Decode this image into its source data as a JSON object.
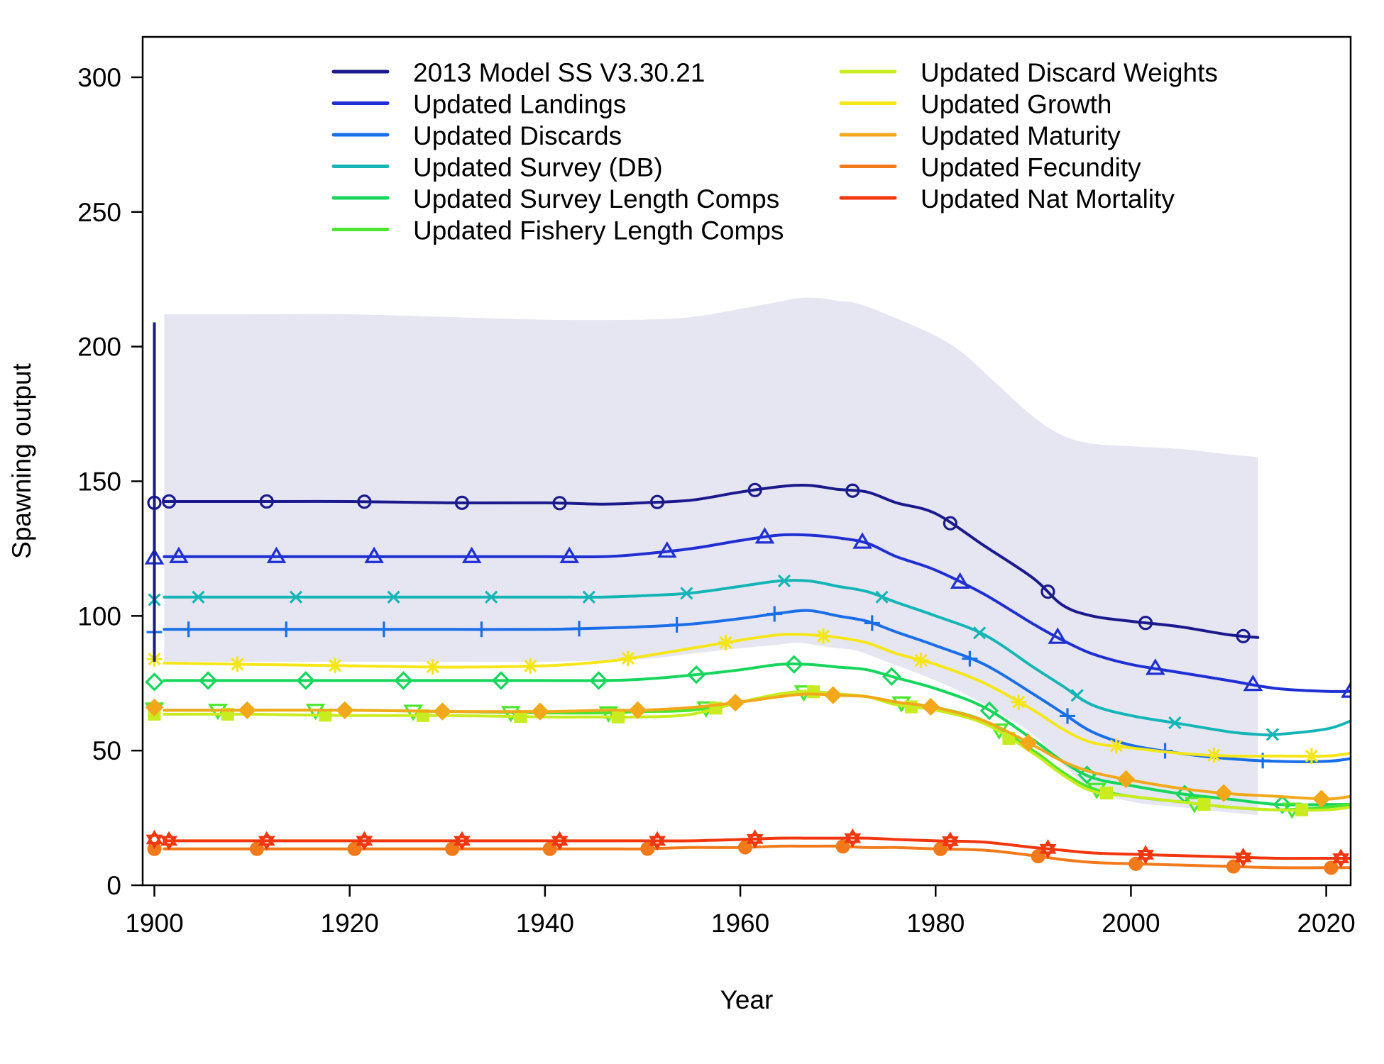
{
  "chart_data": {
    "type": "line",
    "title": "",
    "xlabel": "Year",
    "ylabel": "Spawning output",
    "xlim": [
      1898.8,
      2022.5
    ],
    "ylim": [
      0,
      315
    ],
    "xticks": [
      1900,
      1920,
      1940,
      1960,
      1980,
      2000,
      2020
    ],
    "yticks": [
      0,
      50,
      100,
      150,
      200,
      250,
      300
    ],
    "grid": false,
    "legend": "top-center, two columns",
    "band": {
      "name": "2013 Model SS V3.30.21 uncertainty interval",
      "color": "#e6e6f2",
      "x": [
        1901,
        1910,
        1920,
        1930,
        1940,
        1950,
        1955,
        1960,
        1963,
        1966,
        1968,
        1970,
        1972,
        1975,
        1980,
        1983,
        1986,
        1990,
        1993,
        1996,
        2000,
        2005,
        2010,
        2013
      ],
      "upper": [
        212,
        212,
        212,
        211,
        210,
        210,
        211,
        214,
        216,
        218,
        218,
        217,
        216,
        212,
        204,
        197,
        187,
        174,
        167,
        164,
        163,
        162,
        160,
        159
      ],
      "lower": [
        83,
        83,
        83,
        83,
        83,
        84,
        86,
        88,
        89,
        90,
        89,
        88,
        87,
        83,
        76,
        71,
        65,
        56,
        45,
        36,
        31,
        29,
        27,
        26
      ]
    },
    "initial_error_bar": {
      "x": 1900,
      "ymin": 83,
      "ymax": 209,
      "color": "#1a1a8c"
    },
    "series": [
      {
        "name": "2013 Model SS V3.30.21",
        "color": "#1a1a8c",
        "marker": "circle",
        "initial": 142,
        "x": [
          1901,
          1910,
          1920,
          1930,
          1940,
          1946,
          1950,
          1955,
          1960,
          1964,
          1967,
          1970,
          1973,
          1976,
          1980,
          1985,
          1990,
          1993,
          1996,
          2000,
          2005,
          2010,
          2013
        ],
        "y": [
          142.5,
          142.5,
          142.5,
          142,
          142,
          141.5,
          142,
          143,
          146,
          148,
          148.5,
          147,
          146,
          142,
          138,
          126,
          114,
          104,
          100,
          98,
          96,
          93,
          92
        ]
      },
      {
        "name": "Updated Landings",
        "color": "#1f2fd1",
        "marker": "triangle",
        "initial": 121.5,
        "x": [
          1901,
          1910,
          1920,
          1930,
          1940,
          1946,
          1950,
          1955,
          1960,
          1964,
          1967,
          1970,
          1973,
          1976,
          1980,
          1985,
          1990,
          1993,
          1996,
          2000,
          2005,
          2010,
          2015,
          2020,
          2022.5
        ],
        "y": [
          122,
          122,
          122,
          122,
          122,
          122,
          123,
          125,
          128,
          130,
          130,
          129,
          127,
          122,
          117,
          108,
          97,
          91,
          86,
          82,
          79,
          76,
          73,
          72,
          72
        ]
      },
      {
        "name": "Updated Discards",
        "color": "#1a6ee8",
        "marker": "plus",
        "initial": 94,
        "x": [
          1901,
          1910,
          1920,
          1930,
          1940,
          1946,
          1950,
          1955,
          1960,
          1964,
          1967,
          1970,
          1973,
          1976,
          1980,
          1985,
          1990,
          1993,
          1996,
          2000,
          2005,
          2010,
          2015,
          2020,
          2022.5
        ],
        "y": [
          95,
          95,
          95,
          95,
          95,
          95.5,
          96,
          97,
          99,
          101,
          102,
          100,
          98,
          94,
          89,
          82,
          71,
          64,
          57,
          52,
          49,
          47,
          46,
          46,
          47
        ]
      },
      {
        "name": "Updated Survey (DB)",
        "color": "#16b5b5",
        "marker": "cross",
        "initial": 106,
        "x": [
          1901,
          1910,
          1920,
          1930,
          1940,
          1946,
          1950,
          1955,
          1960,
          1964,
          1967,
          1970,
          1973,
          1976,
          1980,
          1985,
          1990,
          1993,
          1996,
          2000,
          2005,
          2010,
          2013,
          2015,
          2020,
          2022.5
        ],
        "y": [
          107,
          107,
          107,
          107,
          107,
          107,
          107.5,
          108.5,
          111,
          113,
          113,
          111,
          109,
          105,
          100,
          93,
          81,
          74,
          67,
          63,
          60,
          57,
          56,
          56,
          58,
          61
        ]
      },
      {
        "name": "Updated Survey Length Comps",
        "color": "#16d65c",
        "marker": "diamond",
        "initial": 75.5,
        "x": [
          1901,
          1910,
          1920,
          1930,
          1940,
          1946,
          1950,
          1955,
          1960,
          1964,
          1967,
          1970,
          1973,
          1976,
          1980,
          1985,
          1990,
          1993,
          1996,
          2000,
          2005,
          2010,
          2015,
          2020,
          2022.5
        ],
        "y": [
          76,
          76,
          76,
          76,
          76,
          76,
          76.5,
          78,
          80,
          82,
          82,
          81,
          80,
          77,
          73,
          66,
          54,
          46,
          40,
          37,
          34,
          32,
          30,
          30,
          30
        ]
      },
      {
        "name": "Updated Fishery Length Comps",
        "color": "#4ce62e",
        "marker": "triangle-down",
        "initial": 65.5,
        "x": [
          1901,
          1910,
          1920,
          1930,
          1940,
          1946,
          1950,
          1955,
          1960,
          1964,
          1967,
          1970,
          1973,
          1976,
          1980,
          1985,
          1990,
          1993,
          1996,
          2000,
          2005,
          2010,
          2015,
          2020,
          2022.5
        ],
        "y": [
          65,
          65,
          65,
          64.5,
          64,
          64,
          64.5,
          65,
          68,
          71,
          72,
          71,
          70,
          68,
          66,
          61,
          50,
          42,
          36,
          33,
          31,
          29,
          28,
          29,
          30
        ]
      },
      {
        "name": "Updated Discard Weights",
        "color": "#c9ec1f",
        "marker": "square",
        "initial": 63.5,
        "x": [
          1901,
          1910,
          1920,
          1930,
          1940,
          1946,
          1950,
          1955,
          1960,
          1964,
          1967,
          1970,
          1973,
          1976,
          1980,
          1985,
          1990,
          1993,
          1996,
          2000,
          2005,
          2010,
          2015,
          2020,
          2022.5
        ],
        "y": [
          63.5,
          63.5,
          63,
          63,
          62.5,
          62.5,
          62.5,
          63.5,
          68,
          71,
          72,
          71,
          70,
          67,
          65,
          60,
          49,
          41,
          35,
          33,
          31,
          29,
          28,
          28,
          29
        ]
      },
      {
        "name": "Updated Growth",
        "color": "#f5e61a",
        "marker": "asterisk",
        "initial": 84,
        "x": [
          1901,
          1910,
          1920,
          1930,
          1940,
          1946,
          1950,
          1955,
          1960,
          1964,
          1967,
          1970,
          1973,
          1976,
          1980,
          1985,
          1990,
          1993,
          1996,
          2000,
          2005,
          2010,
          2015,
          2020,
          2022.5
        ],
        "y": [
          82.5,
          82,
          81.5,
          81,
          81.5,
          83,
          85,
          88,
          91,
          93,
          93,
          92,
          90,
          86,
          82,
          75,
          65,
          58,
          53,
          51,
          49,
          48,
          48,
          48,
          49
        ]
      },
      {
        "name": "Updated Maturity",
        "color": "#f2a81a",
        "marker": "diamond-filled",
        "initial": 66,
        "x": [
          1901,
          1910,
          1920,
          1930,
          1940,
          1946,
          1950,
          1955,
          1960,
          1964,
          1967,
          1970,
          1973,
          1976,
          1980,
          1985,
          1990,
          1993,
          1996,
          2000,
          2005,
          2010,
          2015,
          2020,
          2022.5
        ],
        "y": [
          65,
          65,
          65,
          64.5,
          64.5,
          65,
          65,
          66,
          68,
          70,
          71,
          70.5,
          70,
          68,
          66,
          61,
          52,
          46,
          42,
          39,
          36,
          34,
          33,
          32,
          33
        ]
      },
      {
        "name": "Updated Fecundity",
        "color": "#f27a1a",
        "marker": "circle-filled",
        "initial": 13.5,
        "x": [
          1901,
          1910,
          1920,
          1930,
          1940,
          1946,
          1950,
          1955,
          1960,
          1964,
          1967,
          1970,
          1973,
          1976,
          1980,
          1985,
          1990,
          1993,
          1996,
          2000,
          2005,
          2010,
          2015,
          2020,
          2022.5
        ],
        "y": [
          13.5,
          13.5,
          13.5,
          13.5,
          13.5,
          13.5,
          13.5,
          14,
          14,
          14.5,
          14.5,
          14.5,
          14,
          14,
          13.5,
          13,
          11,
          9.5,
          8.5,
          8,
          7.5,
          7,
          6.5,
          6.5,
          6.5
        ]
      },
      {
        "name": "Updated Nat Mortality",
        "color": "#f2360d",
        "marker": "star",
        "initial": 17,
        "x": [
          1901,
          1910,
          1920,
          1930,
          1940,
          1946,
          1950,
          1955,
          1960,
          1964,
          1967,
          1970,
          1973,
          1976,
          1980,
          1985,
          1990,
          1993,
          1996,
          2000,
          2005,
          2010,
          2015,
          2020,
          2022.5
        ],
        "y": [
          16.5,
          16.5,
          16.5,
          16.5,
          16.5,
          16.5,
          16.5,
          16.5,
          17,
          17.5,
          17.5,
          17.5,
          17.5,
          17,
          16.5,
          16,
          14,
          13,
          12,
          11.5,
          11,
          10.5,
          10,
          10,
          10
        ]
      }
    ]
  }
}
